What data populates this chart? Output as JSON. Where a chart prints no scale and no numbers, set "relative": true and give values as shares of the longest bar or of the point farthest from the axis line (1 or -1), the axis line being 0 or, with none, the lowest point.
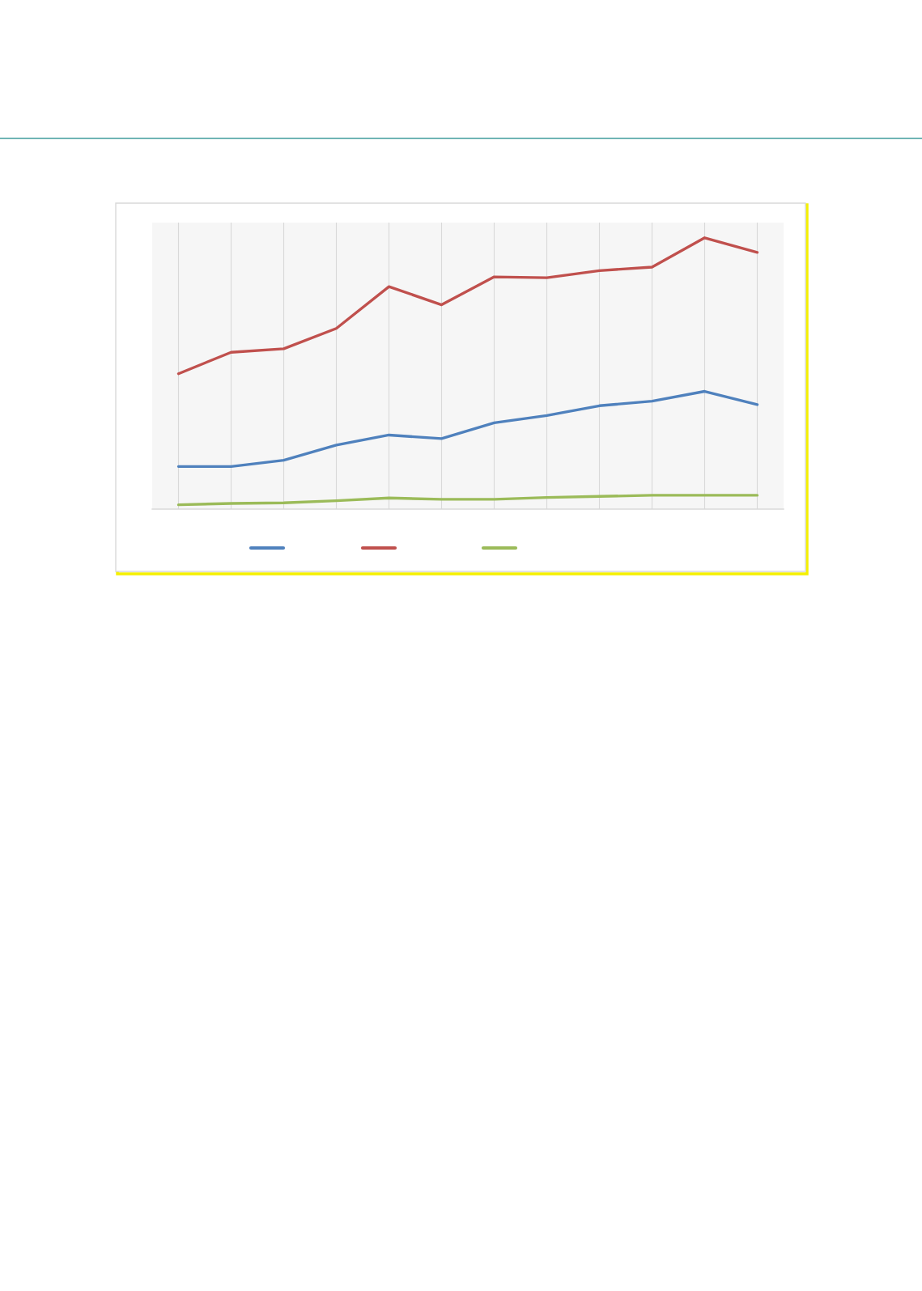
{
  "chart_data": {
    "type": "line",
    "relative": true,
    "categories": [
      null,
      null,
      null,
      null,
      null,
      null,
      null,
      null,
      null,
      null,
      null,
      null
    ],
    "series": [
      {
        "color": "#4f81bd",
        "values": [
          0.157,
          0.157,
          0.18,
          0.236,
          0.273,
          0.26,
          0.318,
          0.345,
          0.381,
          0.398,
          0.434,
          0.385
        ]
      },
      {
        "color": "#c0504d",
        "values": [
          0.499,
          0.578,
          0.591,
          0.666,
          0.82,
          0.753,
          0.856,
          0.853,
          0.879,
          0.892,
          1.0,
          0.946
        ]
      },
      {
        "color": "#9bbb59",
        "values": [
          0.016,
          0.021,
          0.023,
          0.031,
          0.041,
          0.036,
          0.036,
          0.043,
          0.047,
          0.051,
          0.051,
          0.051
        ]
      }
    ],
    "grid": "x"
  }
}
